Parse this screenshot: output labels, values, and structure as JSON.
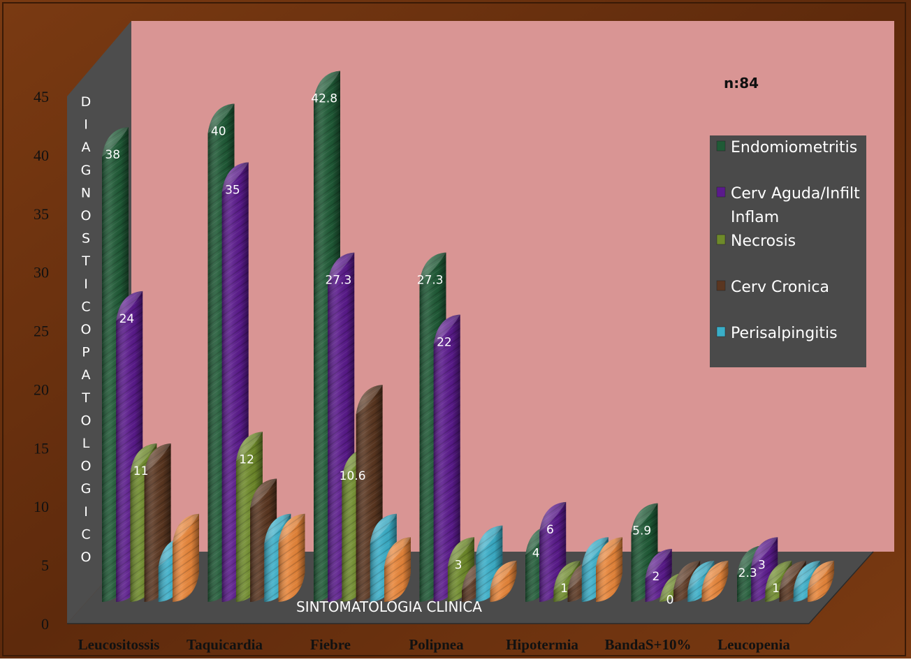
{
  "chart_data": {
    "type": "bar",
    "annotation": "n:84",
    "xlabel": "SINTOMATOLOGIA CLINICA",
    "ylabel": "DIAGNOSTICOPATOLOGICO",
    "ylim": [
      0,
      45
    ],
    "yticks": [
      "0",
      "5",
      "10",
      "15",
      "20",
      "25",
      "30",
      "35",
      "40",
      "45"
    ],
    "legend_position": "right",
    "categories": [
      "Leucositossis",
      "Taquicardia",
      "Fiebre",
      "Polipnea",
      "Hipotermia",
      "BandaS+10%",
      "Leucopenia"
    ],
    "series": [
      {
        "name": "Endomiometritis",
        "color": "#1f5a36",
        "values": [
          38,
          40,
          42.8,
          27.3,
          4,
          5.9,
          2.3
        ],
        "labels": [
          "38",
          "40",
          "42.8",
          "27.3",
          "4",
          "5.9",
          "2.3"
        ]
      },
      {
        "name": "Cerv Aguda/Infilt Inflam",
        "color": "#5a1a8c",
        "values": [
          24,
          35,
          27.3,
          22,
          6,
          2,
          3
        ],
        "labels": [
          "24",
          "35",
          "27.3",
          "22",
          "6",
          "2",
          "3"
        ]
      },
      {
        "name": "Necrosis",
        "color": "#6e8a2a",
        "values": [
          11,
          12,
          10.6,
          3,
          1,
          0,
          1
        ],
        "labels": [
          "11",
          "12",
          "10.6",
          "3",
          "1",
          "0",
          "1"
        ]
      },
      {
        "name": "Cerv Cronica",
        "color": "#5a3620",
        "values": [
          11,
          8,
          16,
          1,
          1,
          1,
          1
        ],
        "labels": [
          "",
          "",
          "",
          "",
          "",
          "",
          ""
        ]
      },
      {
        "name": "Perisalpingitis",
        "color": "#3aaec8",
        "values": [
          3,
          5,
          5,
          4,
          3,
          1,
          1
        ],
        "labels": [
          "",
          "",
          "",
          "",
          "",
          "",
          ""
        ]
      },
      {
        "name": "",
        "color": "#e8863a",
        "values": [
          5,
          5,
          3,
          1,
          3,
          1,
          1
        ],
        "labels": [
          "",
          "",
          "",
          "",
          "",
          "",
          ""
        ]
      }
    ]
  }
}
